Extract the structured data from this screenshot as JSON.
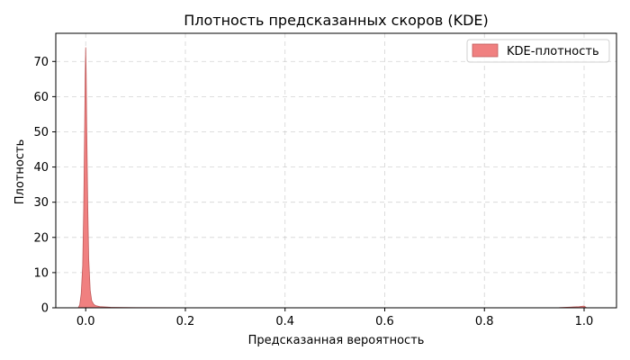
{
  "chart_data": {
    "type": "area",
    "title": "Плотность предсказанных скоров (KDE)",
    "xlabel": "Предсказанная вероятность",
    "ylabel": "Плотность",
    "xlim": [
      -0.06,
      1.065
    ],
    "ylim": [
      0,
      78
    ],
    "x_ticks": [
      0.0,
      0.2,
      0.4,
      0.6,
      0.8,
      1.0
    ],
    "x_tick_labels": [
      "0.0",
      "0.2",
      "0.4",
      "0.6",
      "0.8",
      "1.0"
    ],
    "y_ticks": [
      0,
      10,
      20,
      30,
      40,
      50,
      60,
      70
    ],
    "y_tick_labels": [
      "0",
      "10",
      "20",
      "30",
      "40",
      "50",
      "60",
      "70"
    ],
    "grid": true,
    "legend_position": "top-right",
    "series": [
      {
        "name": "KDE-плотность",
        "color": "#f08080",
        "edge_color": "#c05a5a",
        "x": [
          -0.015,
          -0.012,
          -0.009,
          -0.006,
          -0.004,
          -0.002,
          -0.001,
          0.0,
          0.001,
          0.002,
          0.004,
          0.006,
          0.009,
          0.012,
          0.016,
          0.02,
          0.03,
          0.05,
          0.1,
          0.2,
          0.4,
          0.6,
          0.8,
          0.95,
          0.99,
          1.0,
          1.005
        ],
        "y": [
          0,
          0.8,
          4,
          12,
          28,
          52,
          66,
          74,
          66,
          52,
          30,
          14,
          5,
          2,
          1.0,
          0.6,
          0.3,
          0.15,
          0.06,
          0.03,
          0.02,
          0.02,
          0.02,
          0.05,
          0.3,
          0.5,
          0
        ]
      }
    ]
  }
}
